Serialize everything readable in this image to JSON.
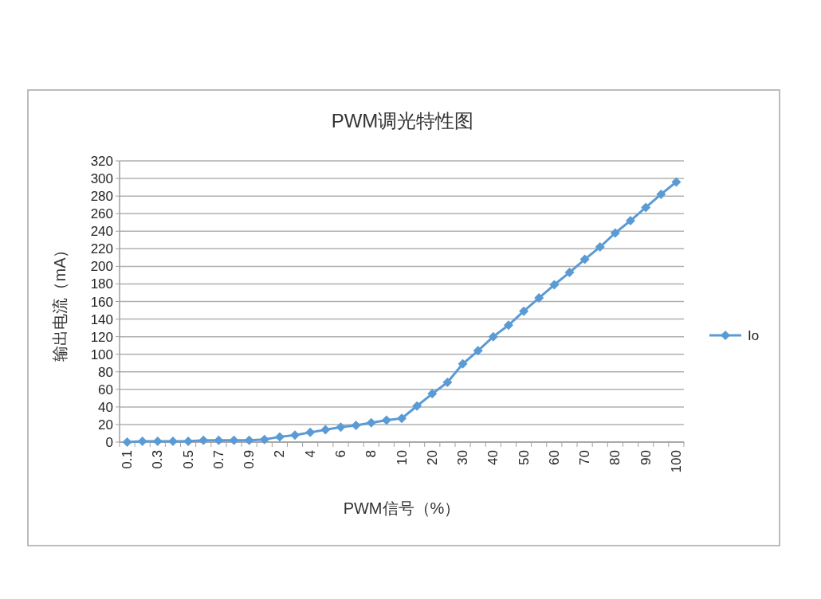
{
  "chart_data": {
    "type": "line",
    "title": "PWM调光特性图",
    "xlabel": "PWM信号（%）",
    "ylabel": "输出电流（mA）",
    "categories": [
      "0.1",
      null,
      "0.3",
      null,
      "0.5",
      null,
      "0.7",
      null,
      "0.9",
      null,
      "2",
      null,
      "4",
      null,
      "6",
      null,
      "8",
      null,
      "10",
      null,
      "20",
      null,
      "30",
      null,
      "40",
      null,
      "50",
      null,
      "60",
      null,
      "70",
      null,
      "80",
      null,
      "90",
      null,
      "100"
    ],
    "series": [
      {
        "name": "Io",
        "color": "#5b9bd5",
        "values": [
          0,
          1,
          1,
          1,
          1,
          2,
          2,
          2,
          2,
          3,
          6,
          8,
          11,
          14,
          17,
          19,
          22,
          25,
          27,
          41,
          55,
          68,
          89,
          104,
          120,
          133,
          149,
          164,
          179,
          193,
          208,
          222,
          238,
          252,
          267,
          282,
          296
        ]
      }
    ],
    "ylim": [
      0,
      320
    ],
    "yticks": [
      0,
      20,
      40,
      60,
      80,
      100,
      120,
      140,
      160,
      180,
      200,
      220,
      240,
      260,
      280,
      300,
      320
    ],
    "grid": "y",
    "legend": "right",
    "marker": "diamond",
    "line_style": "solid"
  }
}
